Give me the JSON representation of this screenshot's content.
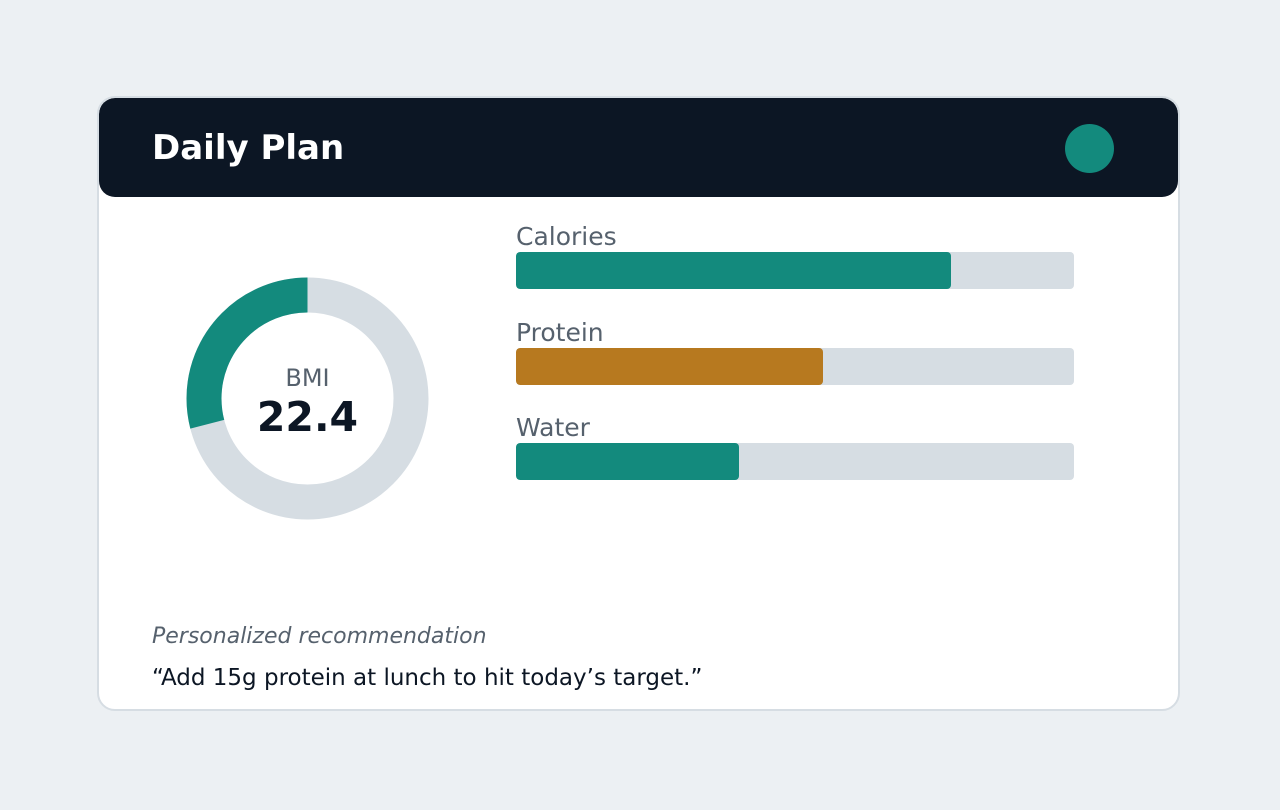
{
  "header": {
    "title": "Daily Plan",
    "status_color": "#138A7D"
  },
  "bmi": {
    "label": "BMI",
    "value": "22.4",
    "ring_fraction": 0.29,
    "ring_color": "#138A7D",
    "track_color": "#D6DDE3"
  },
  "metrics": [
    {
      "label": "Calories",
      "fraction": 0.78,
      "color": "#138A7D"
    },
    {
      "label": "Protein",
      "fraction": 0.55,
      "color": "#B7791F"
    },
    {
      "label": "Water",
      "fraction": 0.4,
      "color": "#138A7D"
    }
  ],
  "recommendation": {
    "label": "Personalized recommendation",
    "text": "“Add 15g protein at lunch to hit today’s target.”"
  }
}
